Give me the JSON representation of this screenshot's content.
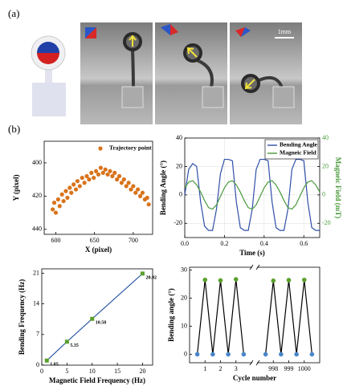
{
  "figure": {
    "panel_a": "(a)",
    "panel_b": "(b)",
    "scale_bar": "1mm"
  },
  "chart_data": [
    {
      "type": "scatter",
      "x_label": "X (pixel)",
      "y_label": "Y (pixel)",
      "series": [
        {
          "name": "Trajectory point",
          "color": "#d9731a",
          "x": [
            596,
            598,
            600,
            603,
            605,
            608,
            610,
            613,
            615,
            618,
            620,
            623,
            626,
            628,
            631,
            634,
            637,
            640,
            643,
            646,
            649,
            652,
            655,
            658,
            661,
            664,
            667,
            670,
            673,
            676,
            679,
            682,
            685,
            688,
            691,
            694,
            697,
            700,
            703,
            706,
            709,
            712,
            715,
            718,
            720
          ],
          "values": [
            428,
            424,
            430,
            422,
            426,
            419,
            423,
            417,
            421,
            415,
            418,
            413,
            416,
            411,
            414,
            409,
            412,
            408,
            410,
            406,
            409,
            405,
            407,
            403,
            406,
            404,
            407,
            405,
            408,
            406,
            410,
            408,
            412,
            410,
            414,
            412,
            416,
            414,
            418,
            416,
            420,
            418,
            422,
            421,
            425
          ]
        }
      ],
      "xlim": [
        585,
        725
      ],
      "xticks": [
        600,
        650,
        700
      ],
      "ylim": [
        387,
        443
      ],
      "yticks": [
        400,
        420,
        440
      ],
      "y_inverted": true,
      "legend": "upper right"
    },
    {
      "type": "line",
      "x_label": "Time (s)",
      "y_label": "Bending Angle (°)",
      "y2_label": "Magneic Field (mT)",
      "x": [
        0,
        0.02,
        0.04,
        0.06,
        0.08,
        0.1,
        0.12,
        0.14,
        0.16,
        0.18,
        0.2,
        0.22,
        0.24,
        0.26,
        0.28,
        0.3,
        0.32,
        0.34,
        0.36,
        0.38,
        0.4,
        0.42,
        0.44,
        0.46,
        0.48,
        0.5,
        0.52,
        0.54,
        0.56,
        0.58,
        0.6,
        0.62,
        0.64,
        0.66,
        0.68
      ],
      "series": [
        {
          "name": "Bending Angle",
          "color": "#2f4fa8",
          "values": [
            0,
            18,
            22,
            20,
            -5,
            -22,
            -25,
            -25,
            -10,
            15,
            25,
            25,
            24,
            -5,
            -23,
            -25,
            -25,
            -10,
            18,
            25,
            25,
            24,
            -5,
            -23,
            -25,
            -25,
            -10,
            18,
            25,
            25,
            24,
            -5,
            -23,
            -25,
            -25
          ]
        },
        {
          "name": "Magneic Field",
          "color": "#4a9a3c",
          "axis": "y2",
          "values": [
            5,
            9,
            10,
            7,
            2,
            -4,
            -9,
            -10,
            -7,
            -1,
            5,
            9,
            10,
            7,
            2,
            -4,
            -9,
            -10,
            -7,
            -1,
            5,
            9,
            10,
            7,
            2,
            -4,
            -9,
            -10,
            -7,
            -1,
            5,
            9,
            10,
            7,
            2
          ]
        }
      ],
      "xlim": [
        0,
        0.68
      ],
      "xticks": [
        {
          "value": 0,
          "label": "0.0"
        },
        0.2,
        0.4,
        0.6
      ],
      "ylim": [
        -30,
        40
      ],
      "yticks": [
        -20,
        0,
        20,
        40
      ],
      "y2lim": [
        -30,
        40
      ],
      "y2ticks": [
        -20,
        0,
        20,
        40
      ],
      "grid": true,
      "legend": "upper right"
    },
    {
      "type": "line",
      "markers": "square",
      "data_labels": true,
      "x_label": "Magnetic Field Frequency (Hz)",
      "y_label": "Bending Frequency (Hz)",
      "x": [
        1,
        5,
        10,
        20
      ],
      "values": [
        1.05,
        5.35,
        10.58,
        20.92
      ],
      "color": "#2f5aa8",
      "marker_color": "#5aa02c",
      "xlim": [
        0,
        22
      ],
      "xticks": [
        0,
        5,
        10,
        15,
        20
      ],
      "ylim": [
        0,
        22
      ],
      "yticks": [
        0,
        7,
        14,
        21
      ]
    },
    {
      "type": "line",
      "markers": "circle",
      "x_label": "Cycle number",
      "y_label": "Bending angle (°)",
      "x": [
        0.5,
        1,
        1.5,
        2,
        2.5,
        3,
        3.5,
        null,
        997.5,
        998,
        998.5,
        999,
        999.5,
        1000,
        1000.5
      ],
      "values": [
        0,
        26.5,
        0,
        26.3,
        0,
        26.7,
        0,
        null,
        0,
        26.2,
        0,
        26.4,
        0,
        26.5,
        0
      ],
      "color": "#000000",
      "marker_colors": [
        "#4a86c8",
        "#5aa02c",
        "#4a86c8",
        "#5aa02c",
        "#4a86c8",
        "#5aa02c",
        "#4a86c8",
        null,
        "#4a86c8",
        "#5aa02c",
        "#4a86c8",
        "#5aa02c",
        "#4a86c8",
        "#5aa02c",
        "#4a86c8"
      ],
      "xlim": [
        0,
        1001
      ],
      "x_break": [
        4,
        997
      ],
      "xticks": [
        1,
        2,
        3,
        998,
        999,
        1000
      ],
      "ylim": [
        -3,
        31
      ],
      "yticks": [
        0,
        10,
        20,
        30
      ]
    }
  ]
}
